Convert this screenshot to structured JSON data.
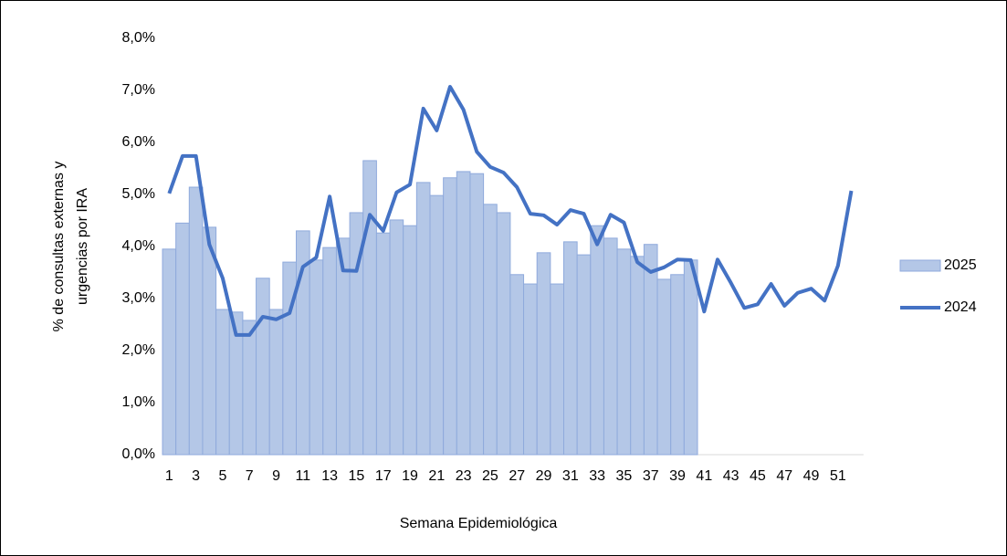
{
  "chart_data": {
    "type": "bar-line",
    "x_label": "Semana Epidemiológica",
    "y_label": [
      "% de consultas externas y",
      "urgencias por IRA"
    ],
    "categories": [
      "1",
      null,
      "3",
      null,
      "5",
      null,
      "7",
      null,
      "9",
      null,
      "11",
      null,
      "13",
      null,
      "15",
      null,
      "17",
      null,
      "19",
      null,
      "21",
      null,
      "23",
      null,
      "25",
      null,
      "27",
      null,
      "29",
      null,
      "31",
      null,
      "33",
      null,
      "35",
      null,
      "37",
      null,
      "39",
      null,
      "41",
      null,
      "43",
      null,
      "45",
      null,
      "47",
      null,
      "49",
      null,
      "51",
      null
    ],
    "ylim": [
      0,
      8
    ],
    "yticks": [
      {
        "value": 0,
        "label": "0,0%"
      },
      {
        "value": 1,
        "label": "1,0%"
      },
      {
        "value": 2,
        "label": "2,0%"
      },
      {
        "value": 3,
        "label": "3,0%"
      },
      {
        "value": 4,
        "label": "4,0%"
      },
      {
        "value": 5,
        "label": "5,0%"
      },
      {
        "value": 6,
        "label": "6,0%"
      },
      {
        "value": 7,
        "label": "7,0%"
      },
      {
        "value": 8,
        "label": "8,0%"
      }
    ],
    "series": [
      {
        "name": "2025",
        "kind": "bar",
        "color": "#b4c7e7",
        "values": [
          3.95,
          4.45,
          5.14,
          4.37,
          2.79,
          2.74,
          2.58,
          3.39,
          2.79,
          3.7,
          4.3,
          3.74,
          3.98,
          4.16,
          4.65,
          5.65,
          4.26,
          4.51,
          4.4,
          5.23,
          4.98,
          5.32,
          5.44,
          5.4,
          4.81,
          4.65,
          3.46,
          3.28,
          3.88,
          3.28,
          4.09,
          3.84,
          4.4,
          4.16,
          3.95,
          3.81,
          4.04,
          3.37,
          3.46,
          3.74,
          null,
          null,
          null,
          null,
          null,
          null,
          null,
          null,
          null,
          null,
          null,
          null
        ]
      },
      {
        "name": "2024",
        "kind": "line",
        "color": "#4472c4",
        "values": [
          5.02,
          5.74,
          5.74,
          4.04,
          3.39,
          2.3,
          2.3,
          2.65,
          2.6,
          2.72,
          3.61,
          3.79,
          4.96,
          3.54,
          3.53,
          4.61,
          4.3,
          5.04,
          5.19,
          6.65,
          6.23,
          7.07,
          6.63,
          5.82,
          5.53,
          5.42,
          5.14,
          4.63,
          4.6,
          4.42,
          4.7,
          4.63,
          4.04,
          4.61,
          4.46,
          3.7,
          3.51,
          3.6,
          3.75,
          3.74,
          2.75,
          3.75,
          3.3,
          2.82,
          2.89,
          3.28,
          2.86,
          3.11,
          3.19,
          2.96,
          3.63,
          5.07
        ]
      }
    ],
    "legend": "right"
  }
}
